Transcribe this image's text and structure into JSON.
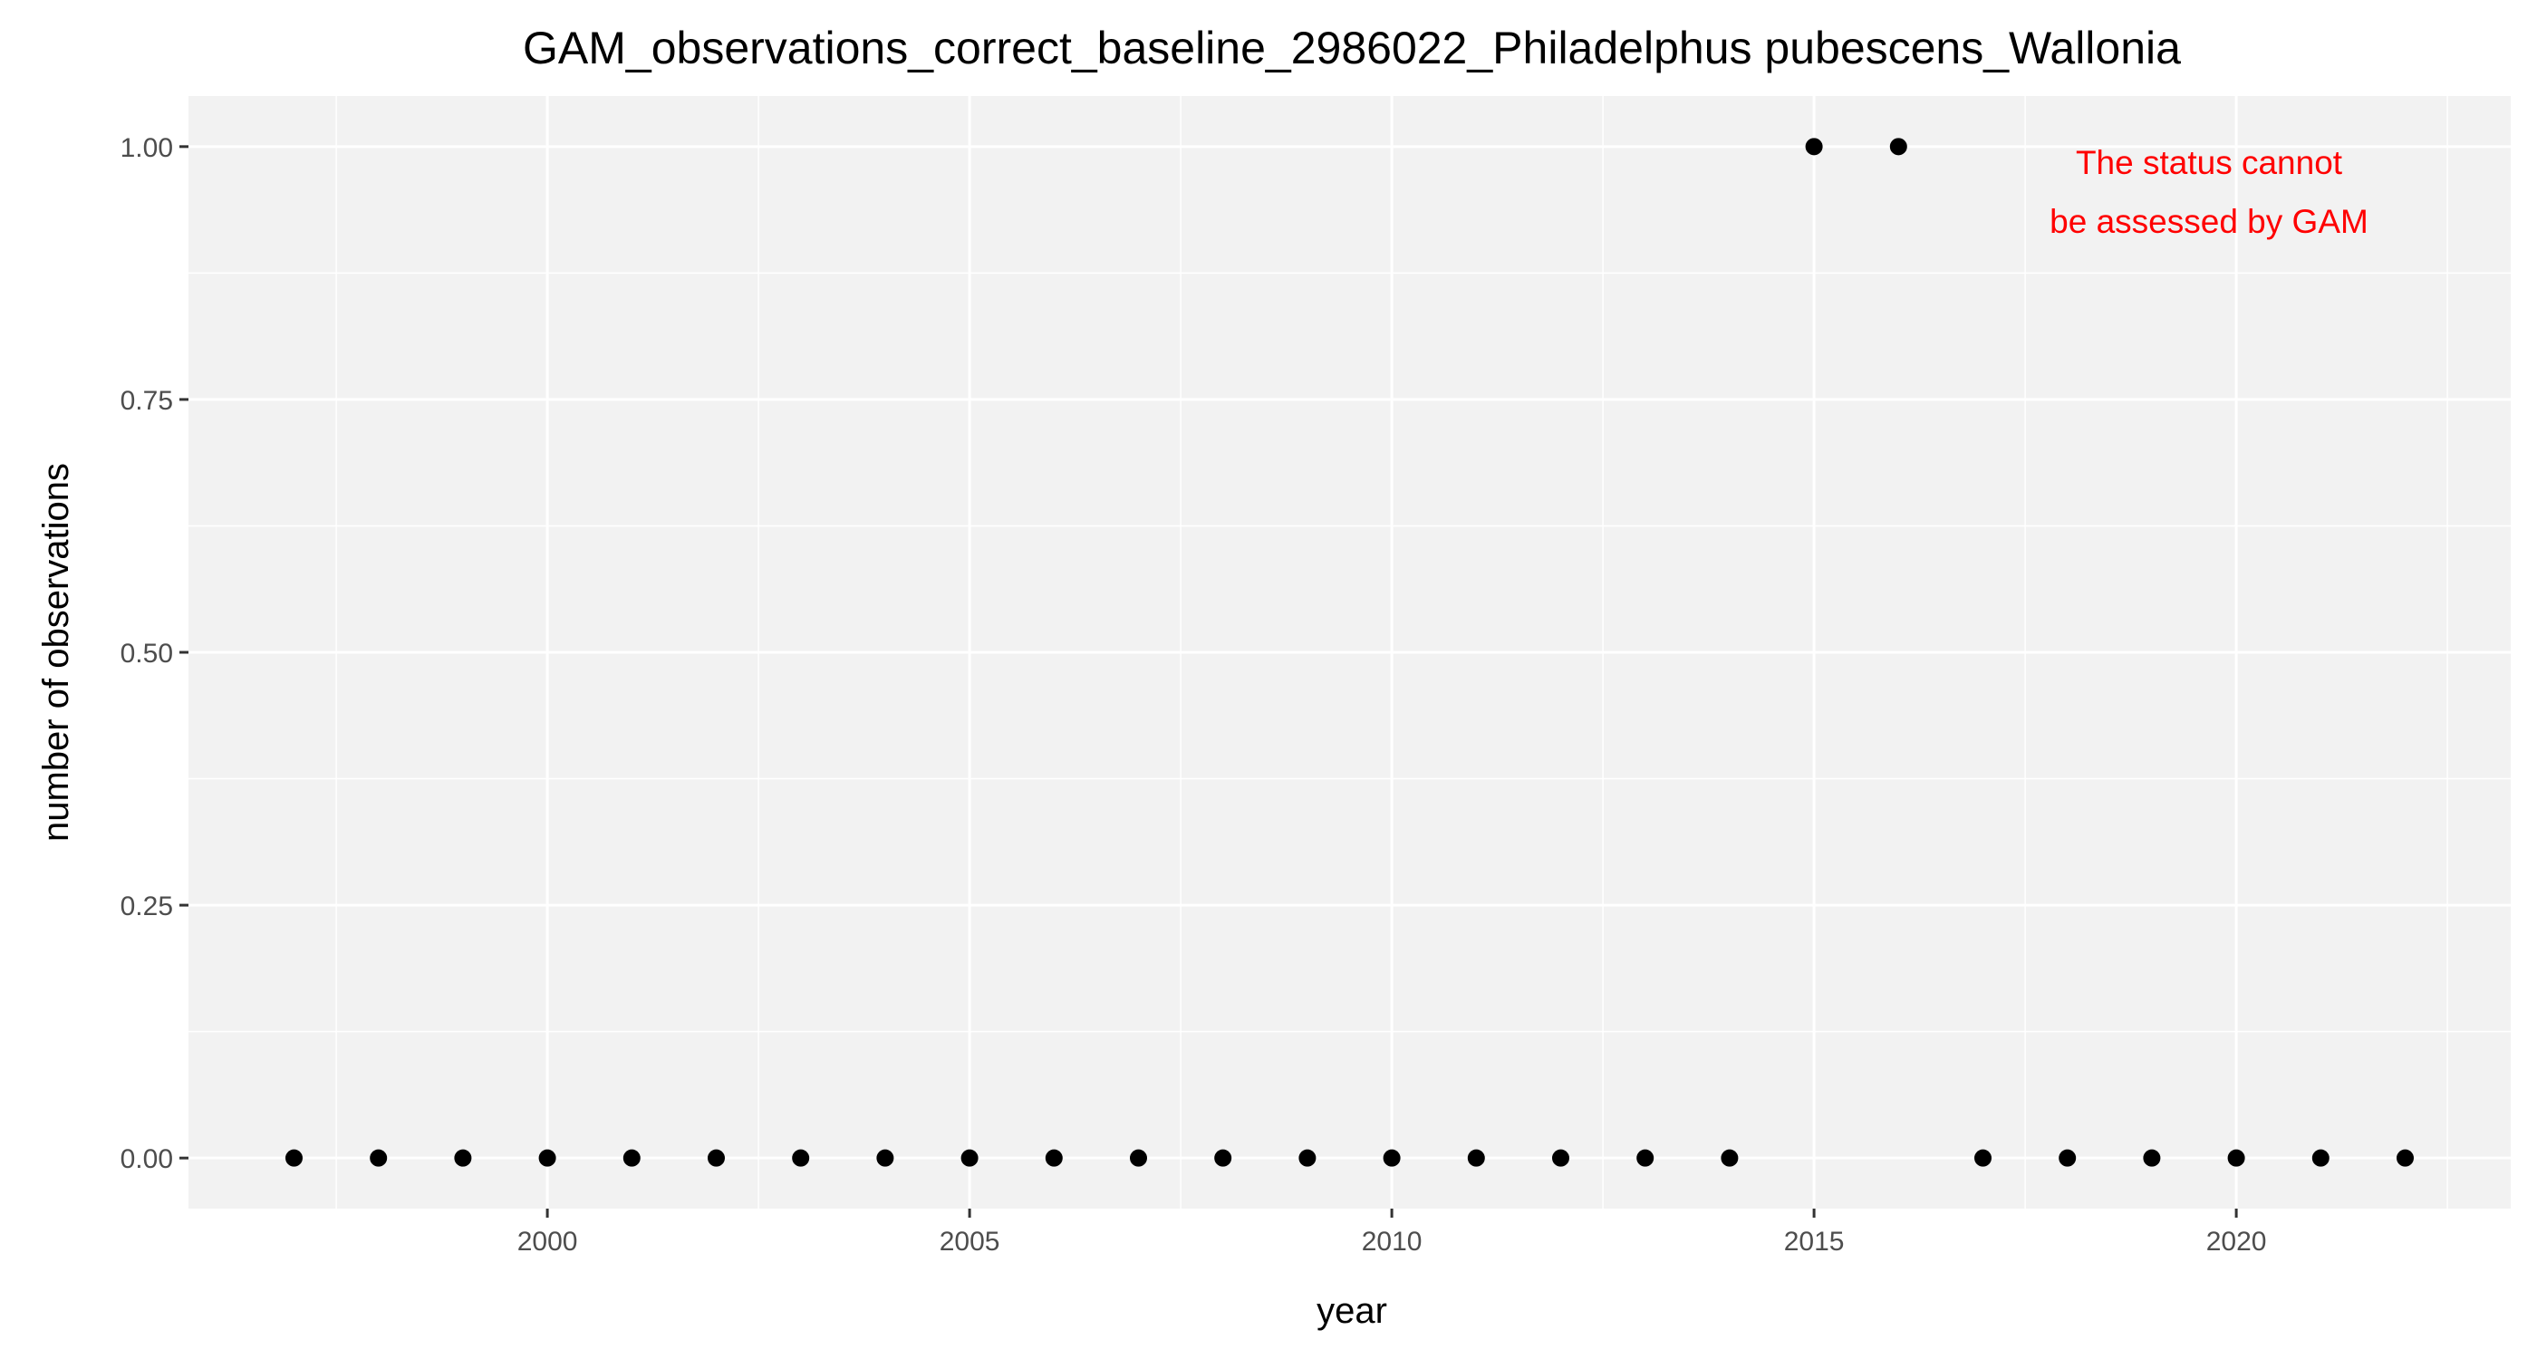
{
  "chart_data": {
    "type": "scatter",
    "title": "GAM_observations_correct_baseline_2986022_Philadelphus pubescens_Wallonia",
    "xlabel": "year",
    "ylabel": "number of observations",
    "xlim": [
      1995.75,
      2023.25
    ],
    "ylim": [
      -0.05,
      1.05
    ],
    "x_ticks": [
      2000,
      2005,
      2010,
      2015,
      2020
    ],
    "x_minor_ticks": [
      1997.5,
      2002.5,
      2007.5,
      2012.5,
      2017.5,
      2022.5
    ],
    "y_ticks": [
      0,
      0.25,
      0.5,
      0.75,
      1
    ],
    "y_tick_labels": [
      "0.00",
      "0.25",
      "0.50",
      "0.75",
      "1.00"
    ],
    "y_minor_ticks": [
      0.125,
      0.375,
      0.625,
      0.875
    ],
    "grid": true,
    "legend": "none",
    "points": [
      {
        "x": 1997,
        "y": 0
      },
      {
        "x": 1998,
        "y": 0
      },
      {
        "x": 1999,
        "y": 0
      },
      {
        "x": 2000,
        "y": 0
      },
      {
        "x": 2001,
        "y": 0
      },
      {
        "x": 2002,
        "y": 0
      },
      {
        "x": 2003,
        "y": 0
      },
      {
        "x": 2004,
        "y": 0
      },
      {
        "x": 2005,
        "y": 0
      },
      {
        "x": 2006,
        "y": 0
      },
      {
        "x": 2007,
        "y": 0
      },
      {
        "x": 2008,
        "y": 0
      },
      {
        "x": 2009,
        "y": 0
      },
      {
        "x": 2010,
        "y": 0
      },
      {
        "x": 2011,
        "y": 0
      },
      {
        "x": 2012,
        "y": 0
      },
      {
        "x": 2013,
        "y": 0
      },
      {
        "x": 2014,
        "y": 0
      },
      {
        "x": 2015,
        "y": 1
      },
      {
        "x": 2016,
        "y": 1
      },
      {
        "x": 2017,
        "y": 0
      },
      {
        "x": 2018,
        "y": 0
      },
      {
        "x": 2019,
        "y": 0
      },
      {
        "x": 2020,
        "y": 0
      },
      {
        "x": 2021,
        "y": 0
      },
      {
        "x": 2022,
        "y": 0
      }
    ],
    "annotation": {
      "lines": [
        "The status cannot",
        "be assessed by GAM"
      ],
      "color": "#ff0000",
      "placement": "top-right"
    },
    "colors": {
      "panel_background": "#f2f2f2",
      "grid": "#ffffff",
      "point": "#000000"
    }
  }
}
